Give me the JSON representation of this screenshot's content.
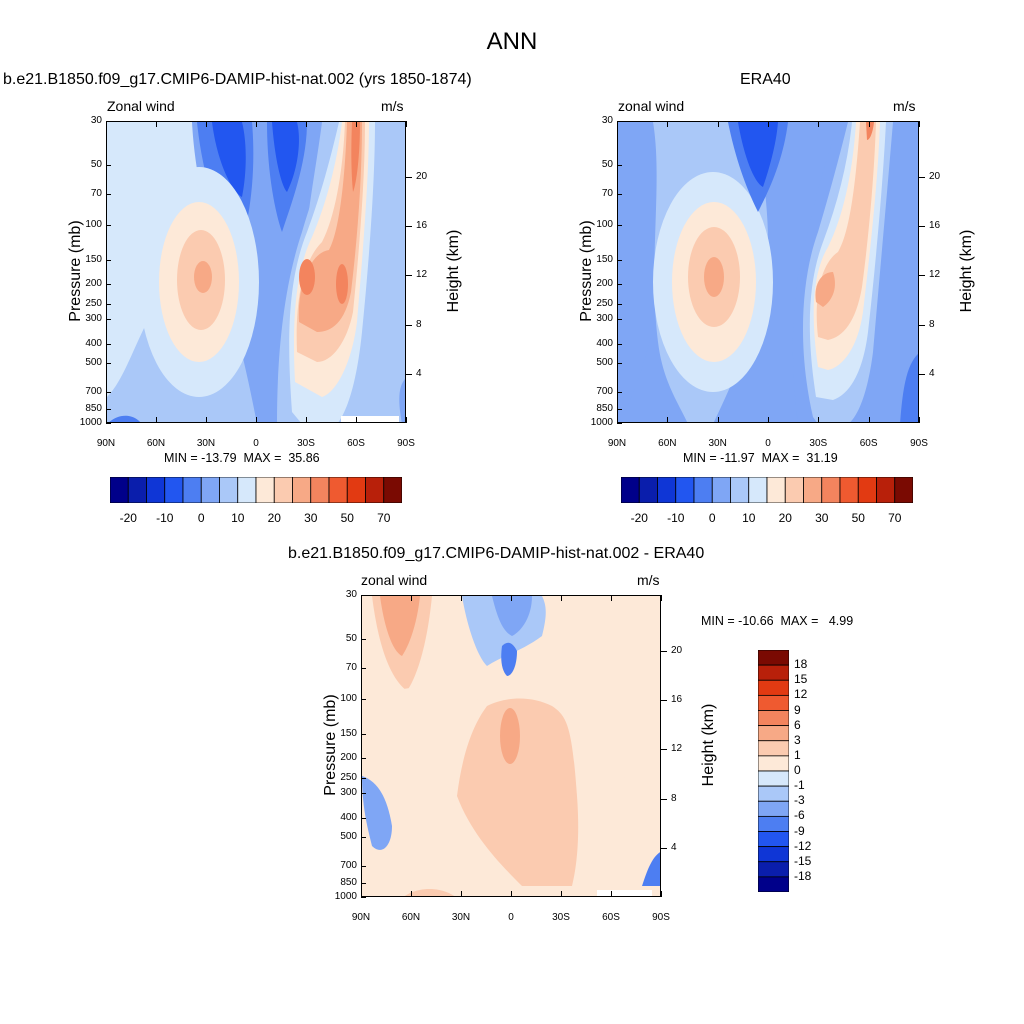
{
  "page_title": "ANN",
  "panels": [
    {
      "title": "b.e21.B1850.f09_g17.CMIP6-DAMIP-hist-nat.002 (yrs 1850-1874)",
      "left_label": "Zonal wind",
      "right_label": "m/s",
      "stats": "MIN = -13.79  MAX =  35.86"
    },
    {
      "title": "ERA40",
      "left_label": "zonal wind",
      "right_label": "m/s",
      "stats": "MIN = -11.97  MAX =  31.19"
    },
    {
      "title": "b.e21.B1850.f09_g17.CMIP6-DAMIP-hist-nat.002 - ERA40",
      "left_label": "zonal wind",
      "right_label": "m/s",
      "stats": "MIN = -10.66  MAX =   4.99"
    }
  ],
  "axes": {
    "ylabel": "Pressure (mb)",
    "y2label": "Height (km)",
    "pressure_ticks": [
      "30",
      "50",
      "70",
      "100",
      "150",
      "200",
      "250",
      "300",
      "400",
      "500",
      "700",
      "850",
      "1000"
    ],
    "height_ticks": [
      "20",
      "16",
      "12",
      "8",
      "4"
    ],
    "lat_ticks": [
      "90N",
      "60N",
      "30N",
      "0",
      "30S",
      "60S",
      "90S"
    ]
  },
  "colorbar_field": {
    "labels": [
      "-20",
      "-10",
      "0",
      "10",
      "20",
      "30",
      "50",
      "70"
    ],
    "colors": [
      "#00008a",
      "#0a1eac",
      "#0f36d6",
      "#2256f0",
      "#4d7ef2",
      "#7fa6f5",
      "#aac8f8",
      "#d6e8fb",
      "#fde9d8",
      "#fbcbb0",
      "#f7a986",
      "#f3845e",
      "#ef5a30",
      "#e23a12",
      "#b8200a",
      "#7a0a02"
    ]
  },
  "colorbar_diff": {
    "labels": [
      "18",
      "15",
      "12",
      "9",
      "6",
      "3",
      "1",
      "0",
      "-1",
      "-3",
      "-6",
      "-9",
      "-12",
      "-15",
      "-18"
    ],
    "colors": [
      "#7a0a02",
      "#b8200a",
      "#e23a12",
      "#ef5a30",
      "#f3845e",
      "#f7a986",
      "#fbcbb0",
      "#fde9d8",
      "#d6e8fb",
      "#aac8f8",
      "#7fa6f5",
      "#4d7ef2",
      "#2256f0",
      "#0f36d6",
      "#0a1eac",
      "#00008a"
    ]
  },
  "chart_data": [
    {
      "type": "heatmap",
      "title": "b.e21.B1850.f09_g17.CMIP6-DAMIP-hist-nat.002 (yrs 1850-1874)",
      "xlabel": "",
      "ylabel": "Pressure (mb)",
      "y2label": "Height (km)",
      "x": [
        "90N",
        "60N",
        "30N",
        "0",
        "30S",
        "60S",
        "90S"
      ],
      "y_pressure_mb": [
        30,
        50,
        70,
        100,
        150,
        200,
        250,
        300,
        400,
        500,
        700,
        850,
        1000
      ],
      "y_log_scale": true,
      "min": -13.79,
      "max": 35.86,
      "units": "m/s",
      "features": [
        {
          "lat": 30,
          "p": 190,
          "u": 20
        },
        {
          "lat": -32,
          "p": 180,
          "u": 30
        },
        {
          "lat": -52,
          "p": 200,
          "u": 32
        },
        {
          "lat": -55,
          "p": 45,
          "u": 30
        },
        {
          "lat": -5,
          "p": 45,
          "u": -12
        },
        {
          "lat": 18,
          "p": 45,
          "u": -10
        },
        {
          "lat": 5,
          "p": 800,
          "u": -6
        }
      ]
    },
    {
      "type": "heatmap",
      "title": "ERA40",
      "xlabel": "",
      "ylabel": "Pressure (mb)",
      "y2label": "Height (km)",
      "x": [
        "90N",
        "60N",
        "30N",
        "0",
        "30S",
        "60S",
        "90S"
      ],
      "y_pressure_mb": [
        30,
        50,
        70,
        100,
        150,
        200,
        250,
        300,
        400,
        500,
        700,
        850,
        1000
      ],
      "y_log_scale": true,
      "min": -11.97,
      "max": 31.19,
      "units": "m/s",
      "features": [
        {
          "lat": 32,
          "p": 190,
          "u": 20
        },
        {
          "lat": -30,
          "p": 200,
          "u": 28
        },
        {
          "lat": -60,
          "p": 35,
          "u": 30
        },
        {
          "lat": 10,
          "p": 40,
          "u": -11
        },
        {
          "lat": 0,
          "p": 200,
          "u": -6
        }
      ]
    },
    {
      "type": "heatmap",
      "title": "b.e21.B1850.f09_g17.CMIP6-DAMIP-hist-nat.002 - ERA40",
      "xlabel": "",
      "ylabel": "Pressure (mb)",
      "y2label": "Height (km)",
      "x": [
        "90N",
        "60N",
        "30N",
        "0",
        "30S",
        "60S",
        "90S"
      ],
      "y_pressure_mb": [
        30,
        50,
        70,
        100,
        150,
        200,
        250,
        300,
        400,
        500,
        700,
        850,
        1000
      ],
      "y_log_scale": true,
      "min": -10.66,
      "max": 4.99,
      "units": "m/s",
      "features": [
        {
          "lat": 70,
          "p": 40,
          "u": 3
        },
        {
          "lat": 0,
          "p": 180,
          "u": 4
        },
        {
          "lat": -60,
          "p": 40,
          "u": 4
        },
        {
          "lat": 5,
          "p": 65,
          "u": -4
        },
        {
          "lat": 15,
          "p": 40,
          "u": -2
        },
        {
          "lat": -30,
          "p": 40,
          "u": -2
        }
      ]
    }
  ]
}
